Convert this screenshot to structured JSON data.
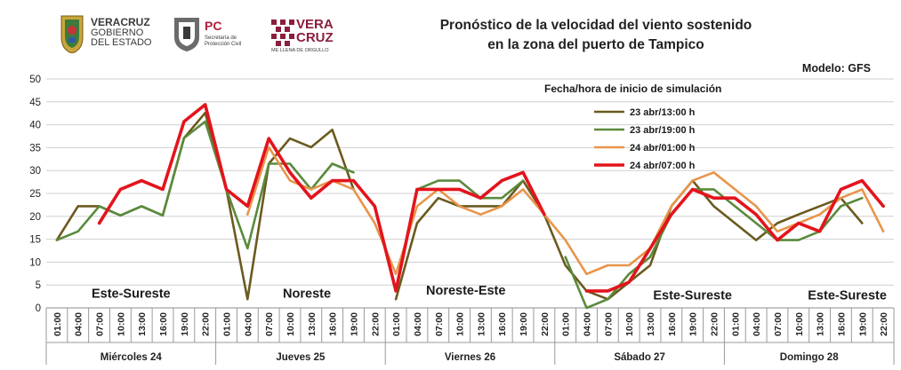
{
  "header": {
    "logo_veracruz_gobierno": {
      "line1": "VERACRUZ",
      "line2": "GOBIERNO",
      "line3": "DEL ESTADO"
    },
    "logo_pc": {
      "initials": "PC",
      "line1": "Secretaría de",
      "line2": "Protección Civil"
    },
    "logo_vera_cruz": {
      "line1": "VERA",
      "line2": "CRUZ",
      "tagline": "ME LLENA DE ORGULLO"
    },
    "title_line1": "Pronóstico de la velocidad del viento sostenido",
    "title_line2": "en la zona del puerto de Tampico",
    "model": "Modelo: GFS"
  },
  "chart_data": {
    "type": "line",
    "title": "Pronóstico de la velocidad del viento sostenido en la zona del puerto de Tampico",
    "xlabel": "",
    "ylabel": "",
    "ylim": [
      0,
      50
    ],
    "yticks": [
      0,
      5,
      10,
      15,
      20,
      25,
      30,
      35,
      40,
      45,
      50
    ],
    "grid": "horizontal",
    "legend_title": "Fecha/hora de inicio de simulación",
    "legend_position": "top-center",
    "x_hours": [
      "01:00",
      "04:00",
      "07:00",
      "10:00",
      "13:00",
      "16:00",
      "19:00",
      "22:00",
      "01:00",
      "04:00",
      "07:00",
      "10:00",
      "13:00",
      "16:00",
      "19:00",
      "22:00",
      "01:00",
      "04:00",
      "07:00",
      "10:00",
      "13:00",
      "16:00",
      "19:00",
      "22:00",
      "01:00",
      "04:00",
      "07:00",
      "10:00",
      "13:00",
      "16:00",
      "19:00",
      "22:00",
      "01:00",
      "04:00",
      "07:00",
      "10:00",
      "13:00",
      "16:00",
      "19:00",
      "22:00"
    ],
    "day_groups": [
      {
        "label": "Miércoles 24",
        "count": 8
      },
      {
        "label": "Jueves 25",
        "count": 8
      },
      {
        "label": "Viernes 26",
        "count": 8
      },
      {
        "label": "Sábado 27",
        "count": 8
      },
      {
        "label": "Domingo 28",
        "count": 8
      }
    ],
    "series": [
      {
        "name": "23 abr/13:00 h",
        "color": "#6b5a1e",
        "width": 2.6,
        "values": [
          14.8,
          22.2,
          22.2,
          20.2,
          22.2,
          20.2,
          37.1,
          42.6,
          25.9,
          1.9,
          31.5,
          37.0,
          35.1,
          38.9,
          25.9,
          null,
          1.9,
          18.5,
          24.0,
          22.2,
          22.2,
          22.2,
          27.8,
          20.4,
          9.3,
          3.7,
          1.9,
          5.6,
          9.3,
          22.2,
          27.8,
          22.2,
          18.5,
          14.8,
          18.5,
          20.4,
          22.2,
          24.0,
          18.5,
          null
        ]
      },
      {
        "name": "23 abr/19:00 h",
        "color": "#5a8a3c",
        "width": 2.6,
        "values": [
          14.8,
          16.7,
          22.2,
          20.2,
          22.2,
          20.2,
          37.1,
          40.7,
          25.9,
          13.0,
          31.5,
          31.5,
          25.9,
          31.5,
          29.6,
          null,
          3.7,
          25.9,
          27.8,
          27.8,
          24.0,
          24.0,
          27.8,
          null,
          11.1,
          0.0,
          1.9,
          7.4,
          11.1,
          20.4,
          25.9,
          25.9,
          22.2,
          18.5,
          14.8,
          14.8,
          16.7,
          22.2,
          24.0,
          null
        ]
      },
      {
        "name": "24 abr/01:00 h",
        "color": "#e8954a",
        "width": 2.6,
        "values": [
          null,
          null,
          null,
          null,
          null,
          null,
          null,
          null,
          null,
          20.4,
          35.1,
          27.8,
          25.9,
          27.8,
          25.9,
          18.5,
          7.4,
          22.2,
          25.9,
          22.2,
          20.4,
          22.2,
          25.9,
          20.4,
          14.8,
          7.4,
          9.3,
          9.3,
          13.0,
          22.2,
          27.8,
          29.6,
          25.9,
          22.2,
          16.7,
          18.5,
          20.4,
          24.0,
          25.9,
          16.7
        ]
      },
      {
        "name": "24 abr/07:00 h",
        "color": "#e3141c",
        "width": 3.6,
        "values": [
          null,
          null,
          18.5,
          25.9,
          27.8,
          25.9,
          40.7,
          44.4,
          25.9,
          22.2,
          37.0,
          29.6,
          24.0,
          27.8,
          27.8,
          22.2,
          3.7,
          25.9,
          25.9,
          25.9,
          24.0,
          27.8,
          29.6,
          20.4,
          null,
          3.7,
          3.7,
          5.6,
          13.0,
          20.4,
          25.9,
          24.0,
          24.0,
          20.4,
          14.8,
          18.5,
          16.7,
          25.9,
          27.8,
          22.2
        ]
      }
    ],
    "annotations": [
      {
        "text": "Este-Sureste",
        "x_index": 3.5,
        "y": 2.2
      },
      {
        "text": "Noreste",
        "x_index": 11.8,
        "y": 2.2
      },
      {
        "text": "Noreste-Este",
        "x_index": 19.3,
        "y": 2.9
      },
      {
        "text": "Este-Sureste",
        "x_index": 30.0,
        "y": 1.8
      },
      {
        "text": "Este-Sureste",
        "x_index": 37.3,
        "y": 1.8
      }
    ]
  }
}
